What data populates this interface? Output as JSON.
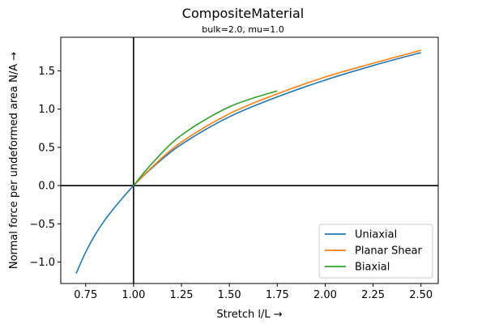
{
  "chart_data": {
    "type": "line",
    "title": "CompositeMaterial",
    "subtitle": "bulk=2.0, mu=1.0",
    "xlabel": "Stretch l/L  →",
    "ylabel": "Normal force per undeformed area N/A  →",
    "xlim": [
      0.62,
      2.59
    ],
    "ylim": [
      -1.28,
      1.94
    ],
    "xticks": [
      0.75,
      1.0,
      1.25,
      1.5,
      1.75,
      2.0,
      2.25,
      2.5
    ],
    "xtick_labels": [
      "0.75",
      "1.00",
      "1.25",
      "1.50",
      "1.75",
      "2.00",
      "2.25",
      "2.50"
    ],
    "yticks": [
      -1.0,
      -0.5,
      0.0,
      0.5,
      1.0,
      1.5
    ],
    "ytick_labels": [
      "−1.0",
      "−0.5",
      "0.0",
      "0.5",
      "1.0",
      "1.5"
    ],
    "grid": false,
    "legend_position": "bottom-right",
    "reference_lines": {
      "x": 1.0,
      "y": 0.0
    },
    "series": [
      {
        "name": "Uniaxial",
        "color": "#1f77b4",
        "x": [
          0.7,
          0.75,
          0.8,
          0.85,
          0.9,
          0.95,
          1.0,
          1.1,
          1.25,
          1.5,
          1.75,
          2.0,
          2.25,
          2.5
        ],
        "y": [
          -1.15,
          -0.87,
          -0.64,
          -0.45,
          -0.29,
          -0.14,
          0.0,
          0.24,
          0.54,
          0.9,
          1.16,
          1.38,
          1.57,
          1.74
        ]
      },
      {
        "name": "Planar Shear",
        "color": "#ff7f0e",
        "x": [
          1.0,
          1.1,
          1.25,
          1.5,
          1.75,
          2.0,
          2.25,
          2.5
        ],
        "y": [
          0.0,
          0.25,
          0.57,
          0.94,
          1.2,
          1.42,
          1.6,
          1.77
        ]
      },
      {
        "name": "Biaxial",
        "color": "#2ca02c",
        "x": [
          1.0,
          1.1,
          1.25,
          1.5,
          1.75
        ],
        "y": [
          0.0,
          0.3,
          0.66,
          1.03,
          1.24
        ]
      }
    ]
  }
}
